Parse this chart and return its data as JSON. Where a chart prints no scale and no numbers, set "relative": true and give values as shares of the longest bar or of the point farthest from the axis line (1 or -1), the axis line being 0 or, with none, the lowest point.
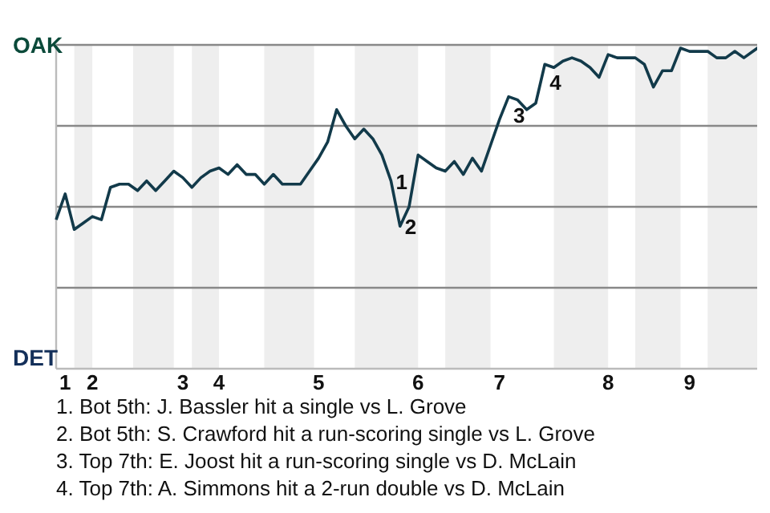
{
  "chart_data": {
    "type": "line",
    "relative": true,
    "color": "#123a4a",
    "line_style": "solid",
    "marker": "none",
    "grid": false,
    "categories": [
      null,
      "1",
      null,
      null,
      "2",
      null,
      null,
      null,
      null,
      null,
      null,
      null,
      null,
      null,
      "3",
      null,
      null,
      null,
      "4",
      null,
      null,
      null,
      null,
      null,
      null,
      null,
      null,
      null,
      null,
      "5",
      null,
      null,
      null,
      null,
      null,
      null,
      null,
      null,
      null,
      null,
      "6",
      null,
      null,
      null,
      null,
      null,
      null,
      null,
      null,
      "7",
      null,
      null,
      null,
      null,
      null,
      null,
      null,
      null,
      null,
      null,
      null,
      "8",
      null,
      null,
      null,
      null,
      null,
      null,
      null,
      null,
      "9",
      null,
      null,
      null,
      null,
      null,
      null,
      null,
      null
    ],
    "values": [
      0.46,
      0.54,
      0.43,
      0.45,
      0.47,
      0.46,
      0.56,
      0.57,
      0.57,
      0.55,
      0.58,
      0.55,
      0.58,
      0.61,
      0.59,
      0.56,
      0.59,
      0.61,
      0.62,
      0.6,
      0.63,
      0.6,
      0.6,
      0.57,
      0.6,
      0.57,
      0.57,
      0.57,
      0.61,
      0.65,
      0.7,
      0.8,
      0.75,
      0.71,
      0.74,
      0.71,
      0.66,
      0.58,
      0.44,
      0.5,
      0.66,
      0.64,
      0.62,
      0.61,
      0.64,
      0.6,
      0.65,
      0.61,
      0.69,
      0.77,
      0.84,
      0.83,
      0.8,
      0.82,
      0.94,
      0.93,
      0.95,
      0.96,
      0.95,
      0.93,
      0.9,
      0.97,
      0.96,
      0.96,
      0.96,
      0.94,
      0.87,
      0.92,
      0.92,
      0.99,
      0.98,
      0.98,
      0.98,
      0.96,
      0.96,
      0.98,
      0.96,
      0.98,
      1
    ],
    "ref_lines": [
      {
        "axis": "y",
        "value": 0.25,
        "color": "#888888"
      },
      {
        "axis": "y",
        "value": 0.5,
        "color": "#888888"
      },
      {
        "axis": "y",
        "value": 0.75,
        "color": "#888888"
      },
      {
        "axis": "y",
        "value": 1,
        "color": "#888888"
      }
    ],
    "annotations": [
      "OAK",
      "DET",
      "1",
      "2",
      "3",
      "4",
      "1. Bot 5th: J. Bassler hit a single vs L. Grove",
      "2. Bot 5th: S. Crawford hit a run-scoring single vs L. Grove",
      "3. Top 7th: E. Joost hit a run-scoring single vs D. McLain",
      "4. Top 7th: A. Simmons hit a 2-run double vs D. McLain"
    ]
  }
}
